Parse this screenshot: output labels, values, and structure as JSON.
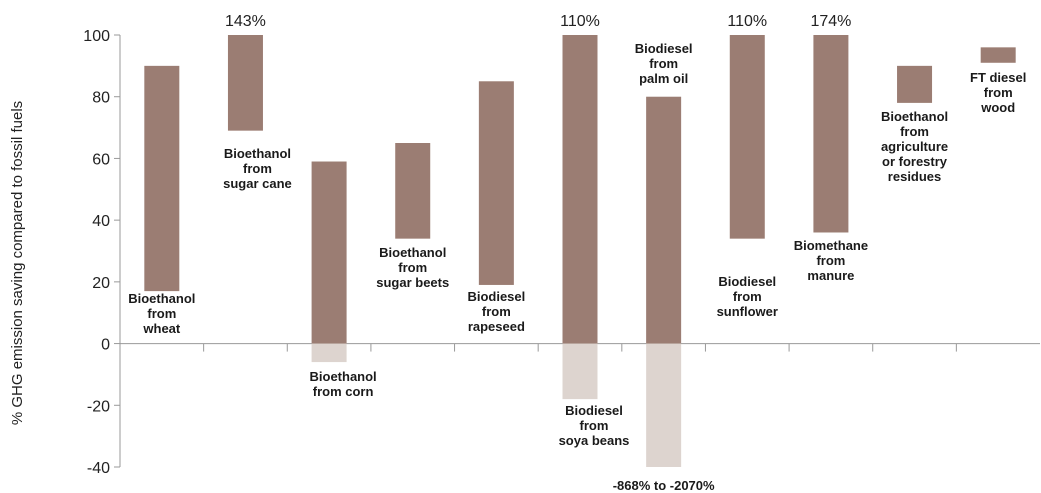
{
  "chart_data": {
    "type": "bar",
    "subtype": "floating-range",
    "ylabel": "% GHG emission saving compared to fossil fuels",
    "ylim": [
      -40,
      100
    ],
    "yticks": [
      100,
      80,
      60,
      40,
      20,
      0,
      -20,
      -40
    ],
    "ytick_labels": [
      "100",
      "80",
      "60",
      "40",
      "20",
      "0",
      "-20",
      "-40"
    ],
    "grid": false,
    "colors": {
      "positive": "#9b7d73",
      "negative": "#ddd4cf",
      "axis": "#999999"
    },
    "categories": [
      {
        "label": [
          "Bioethanol",
          "from",
          "wheat"
        ],
        "low": 17,
        "high": 90
      },
      {
        "label": [
          "Bioethanol",
          "from",
          "sugar cane"
        ],
        "low": 69,
        "high": 143,
        "overflow_label": "143%"
      },
      {
        "label": [
          "Bioethanol",
          "from corn"
        ],
        "low": -6,
        "high": 59
      },
      {
        "label": [
          "Bioethanol",
          "from",
          "sugar beets"
        ],
        "low": 34,
        "high": 65
      },
      {
        "label": [
          "Biodiesel",
          "from",
          "rapeseed"
        ],
        "low": 19,
        "high": 85
      },
      {
        "label": [
          "Biodiesel",
          "from",
          "soya beans"
        ],
        "low": -18,
        "high": 110,
        "overflow_label": "110%"
      },
      {
        "label": [
          "Biodiesel",
          "from",
          "palm oil"
        ],
        "low": -2070,
        "high": 80,
        "underflow_label": "-868% to -2070%"
      },
      {
        "label": [
          "Biodiesel",
          "from",
          "sunflower"
        ],
        "low": 34,
        "high": 110,
        "overflow_label": "110%"
      },
      {
        "label": [
          "Biomethane",
          "from",
          "manure"
        ],
        "low": 36,
        "high": 174,
        "overflow_label": "174%"
      },
      {
        "label": [
          "Bioethanol",
          "from",
          "agriculture",
          "or forestry",
          "residues"
        ],
        "low": 78,
        "high": 90
      },
      {
        "label": [
          "FT diesel",
          "from",
          "wood"
        ],
        "low": 91,
        "high": 96
      }
    ]
  }
}
